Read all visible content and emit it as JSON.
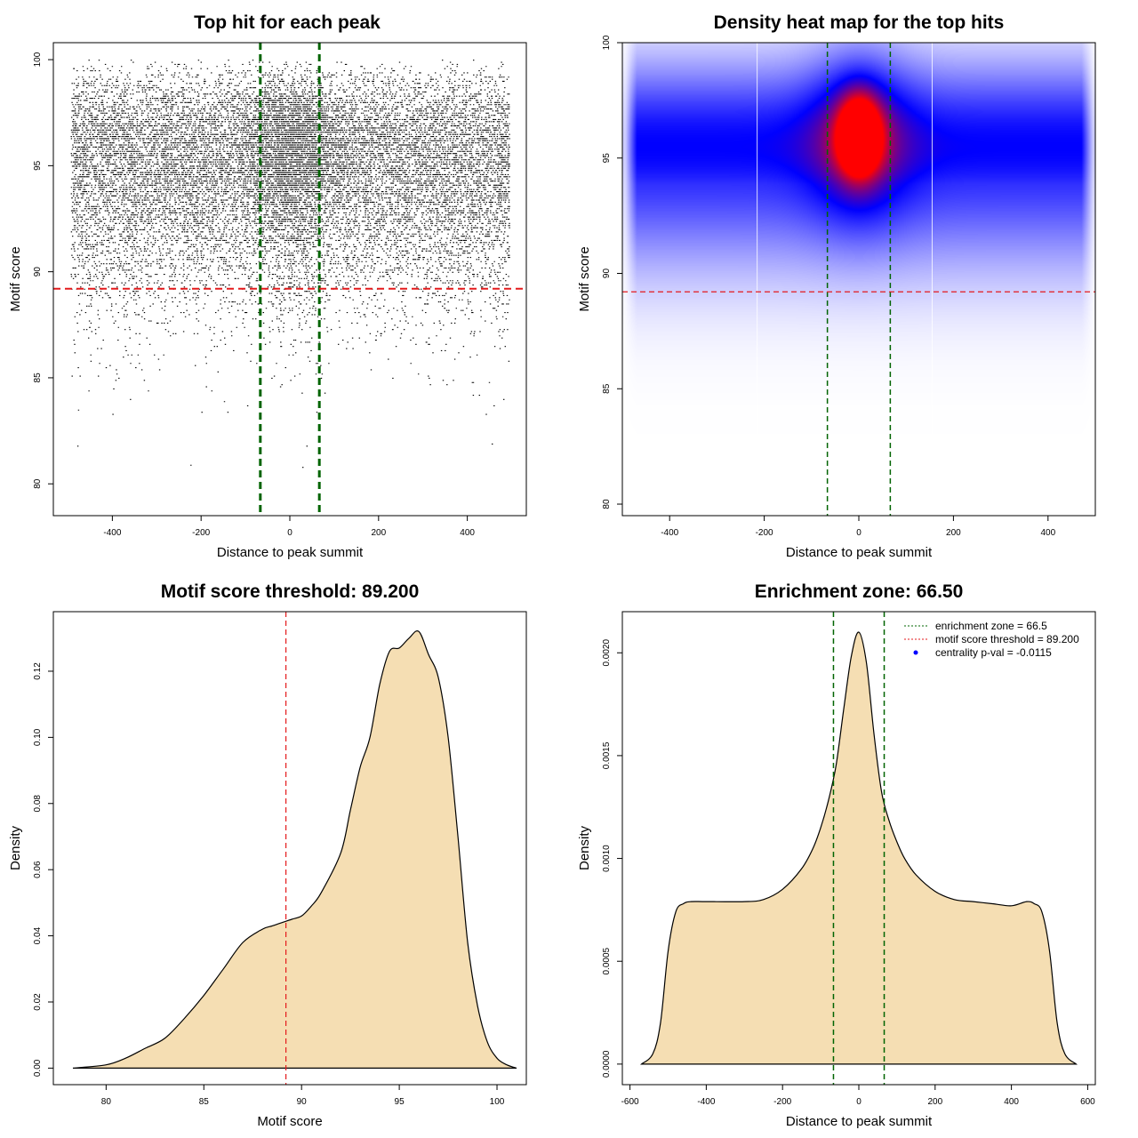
{
  "colors": {
    "point": "#000000",
    "green_line": "#006400",
    "red_line": "#e41a1c",
    "density_fill": "#f5deb3",
    "heat_low": "#ffffff",
    "heat_mid": "#0000ff",
    "heat_high": "#ff0000",
    "legend_point": "#0000ff"
  },
  "chart_data": [
    {
      "id": "scatter",
      "type": "scatter",
      "title": "Top hit for each peak",
      "xlabel": "Distance to peak summit",
      "ylabel": "Motif score",
      "xlim": [
        -533,
        533
      ],
      "ylim": [
        78.5,
        100.8
      ],
      "xticks": [
        -400,
        -200,
        0,
        200,
        400
      ],
      "yticks": [
        80,
        85,
        90,
        95,
        100
      ],
      "x_range_of_points": [
        -494,
        494
      ],
      "enrichment_zone": 66.5,
      "motif_score_threshold": 89.2,
      "density_peak": {
        "x": 0,
        "y": 96,
        "x_sd": 75,
        "y_sd": 2.2
      },
      "density_shape": "uniform in x across +/-494 with central enrichment; score mode about 96, sparse below 85",
      "rendering": "point cloud approximation of the distribution"
    },
    {
      "id": "heatmap",
      "type": "heatmap",
      "title": "Density heat map for the top hits",
      "xlabel": "Distance to peak summit",
      "ylabel": "Motif score",
      "xlim": [
        -500,
        500
      ],
      "ylim": [
        79.5,
        100
      ],
      "xticks": [
        -400,
        -200,
        0,
        200,
        400
      ],
      "yticks": [
        80,
        85,
        90,
        95,
        100
      ],
      "hotspot": {
        "x": 0,
        "y": 96,
        "x_sd": 30,
        "y_sd": 1.2
      },
      "background_band": {
        "y_center": 95.5,
        "y_sd": 2.5
      },
      "faint_vertical_lines_at": [
        -215,
        155
      ],
      "enrichment_zone": 66.5,
      "motif_score_threshold": 89.2,
      "color_scale": [
        "white",
        "blue",
        "red"
      ]
    },
    {
      "id": "score-density",
      "type": "area",
      "title": "Motif score threshold: 89.200",
      "xlabel": "Motif score",
      "ylabel": "Density",
      "xlim": [
        77.3,
        101.5
      ],
      "ylim": [
        -0.005,
        0.138
      ],
      "xticks": [
        80,
        85,
        90,
        95,
        100
      ],
      "yticks": [
        0.0,
        0.02,
        0.04,
        0.06,
        0.08,
        0.1,
        0.12
      ],
      "ytick_labels": [
        "0.00",
        "0.02",
        "0.04",
        "0.06",
        "0.08",
        "0.10",
        "0.12"
      ],
      "threshold": 89.2,
      "x": [
        78.3,
        80,
        81,
        82,
        83,
        84,
        85,
        86,
        87,
        88,
        88.5,
        89,
        89.5,
        90,
        90.5,
        91,
        92,
        92.5,
        93,
        93.5,
        94,
        94.5,
        95,
        95.5,
        96,
        96.5,
        97,
        97.5,
        98,
        98.5,
        99,
        99.5,
        100,
        100.5,
        101
      ],
      "y": [
        0.0,
        0.001,
        0.003,
        0.006,
        0.009,
        0.015,
        0.022,
        0.03,
        0.038,
        0.042,
        0.043,
        0.044,
        0.045,
        0.046,
        0.049,
        0.053,
        0.065,
        0.078,
        0.091,
        0.1,
        0.116,
        0.126,
        0.127,
        0.13,
        0.132,
        0.125,
        0.118,
        0.1,
        0.07,
        0.038,
        0.019,
        0.008,
        0.003,
        0.001,
        0.0
      ]
    },
    {
      "id": "distance-density",
      "type": "area",
      "title": "Enrichment zone: 66.50",
      "xlabel": "Distance to peak summit",
      "ylabel": "Density",
      "xlim": [
        -620,
        620
      ],
      "ylim": [
        -0.0001,
        0.0022
      ],
      "xticks": [
        -600,
        -400,
        -200,
        0,
        200,
        400,
        600
      ],
      "yticks": [
        0.0,
        0.0005,
        0.001,
        0.0015,
        0.002
      ],
      "ytick_labels": [
        "0.0000",
        "0.0005",
        "0.0010",
        "0.0015",
        "0.0020"
      ],
      "enrichment_zone": 66.5,
      "x": [
        -570,
        -540,
        -520,
        -500,
        -480,
        -460,
        -440,
        -400,
        -300,
        -250,
        -200,
        -150,
        -120,
        -100,
        -80,
        -60,
        -40,
        -20,
        0,
        20,
        40,
        60,
        80,
        100,
        120,
        150,
        200,
        250,
        300,
        350,
        400,
        440,
        460,
        480,
        500,
        520,
        540,
        570
      ],
      "y": [
        0.0,
        5e-05,
        0.0002,
        0.00055,
        0.00074,
        0.00078,
        0.00079,
        0.00079,
        0.00079,
        0.0008,
        0.00085,
        0.00095,
        0.00105,
        0.00115,
        0.00128,
        0.00145,
        0.00172,
        0.00198,
        0.0021,
        0.00195,
        0.0016,
        0.00132,
        0.00118,
        0.00108,
        0.001,
        0.00092,
        0.00084,
        0.0008,
        0.00079,
        0.00078,
        0.00077,
        0.00079,
        0.00078,
        0.00074,
        0.00055,
        0.0002,
        5e-05,
        0.0
      ]
    }
  ],
  "legend": {
    "entries": [
      {
        "label": "enrichment zone = 66.5",
        "kind": "line",
        "color": "#006400"
      },
      {
        "label": "motif score threshold = 89.200",
        "kind": "line",
        "color": "#e41a1c"
      },
      {
        "label": "centrality p-val = -0.0115",
        "kind": "point",
        "color": "#0000ff"
      }
    ]
  }
}
